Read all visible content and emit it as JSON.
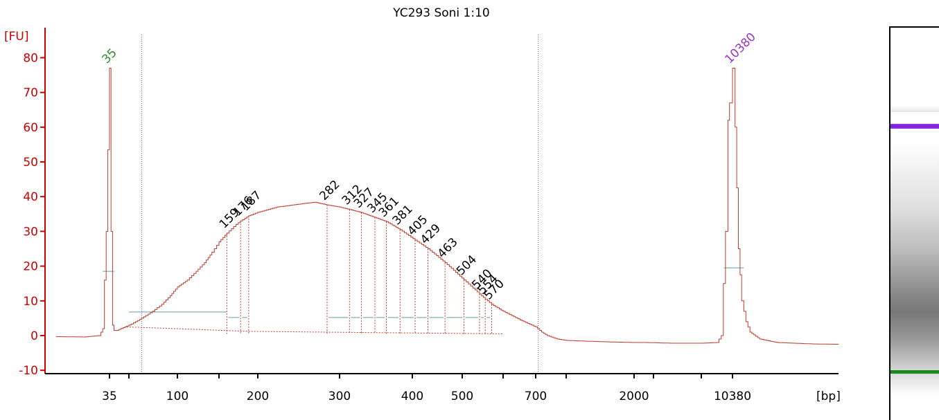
{
  "chart_data": {
    "type": "line",
    "title": "YC293 Soni 1:10",
    "ylabel": "[FU]",
    "xlabel": "[bp]",
    "ylim": [
      -10,
      85
    ],
    "yticks": [
      -10,
      0,
      10,
      20,
      30,
      40,
      50,
      60,
      70,
      80
    ],
    "xticks": [
      {
        "bp": 35,
        "label": "35"
      },
      {
        "bp": 50,
        "label": ""
      },
      {
        "bp": 100,
        "label": "100"
      },
      {
        "bp": 150,
        "label": ""
      },
      {
        "bp": 200,
        "label": "200"
      },
      {
        "bp": 300,
        "label": "300"
      },
      {
        "bp": 400,
        "label": "400"
      },
      {
        "bp": 500,
        "label": "500"
      },
      {
        "bp": 600,
        "label": ""
      },
      {
        "bp": 700,
        "label": "700"
      },
      {
        "bp": 1000,
        "label": ""
      },
      {
        "bp": 2000,
        "label": "2000"
      },
      {
        "bp": 4000,
        "label": ""
      },
      {
        "bp": 7000,
        "label": ""
      },
      {
        "bp": 10380,
        "label": "10380"
      }
    ],
    "region_markers_bp": [
      60,
      720
    ],
    "markers": [
      {
        "label": "35",
        "bp": 35,
        "fu": 77,
        "color": "#2e8b2e"
      },
      {
        "label": "10380",
        "bp": 10380,
        "fu": 77,
        "color": "#9933cc"
      }
    ],
    "series": [
      {
        "color": "#c0392b",
        "points": [
          [
            22,
            -0.3
          ],
          [
            28,
            -0.4
          ],
          [
            32,
            0
          ],
          [
            33,
            2
          ],
          [
            34,
            30
          ],
          [
            35,
            77
          ],
          [
            36,
            30
          ],
          [
            37,
            3
          ],
          [
            38,
            1.5
          ],
          [
            40,
            1.5
          ],
          [
            45,
            2.3
          ],
          [
            50,
            3
          ],
          [
            55,
            4
          ],
          [
            60,
            5
          ],
          [
            70,
            7
          ],
          [
            80,
            9
          ],
          [
            90,
            11.5
          ],
          [
            100,
            14
          ],
          [
            110,
            16
          ],
          [
            120,
            18.5
          ],
          [
            130,
            21
          ],
          [
            140,
            24
          ],
          [
            150,
            27
          ],
          [
            159,
            29.5
          ],
          [
            170,
            32
          ],
          [
            176,
            33
          ],
          [
            187,
            34.5
          ],
          [
            200,
            35.5
          ],
          [
            220,
            37
          ],
          [
            250,
            38
          ],
          [
            265,
            38.4
          ],
          [
            282,
            37.6
          ],
          [
            300,
            37
          ],
          [
            312,
            36.3
          ],
          [
            327,
            35.4
          ],
          [
            345,
            34
          ],
          [
            361,
            32.8
          ],
          [
            381,
            30.5
          ],
          [
            405,
            27.5
          ],
          [
            429,
            25
          ],
          [
            463,
            21
          ],
          [
            504,
            16
          ],
          [
            540,
            12
          ],
          [
            554,
            10.5
          ],
          [
            570,
            9
          ],
          [
            600,
            7
          ],
          [
            650,
            4.5
          ],
          [
            700,
            2.5
          ],
          [
            750,
            1
          ],
          [
            800,
            0
          ],
          [
            900,
            -1
          ],
          [
            1000,
            -1.4
          ],
          [
            1500,
            -1.8
          ],
          [
            2000,
            -2
          ],
          [
            3000,
            -2
          ],
          [
            5000,
            -2.2
          ],
          [
            7000,
            -2.2
          ],
          [
            8500,
            -2
          ],
          [
            9000,
            0
          ],
          [
            9500,
            30
          ],
          [
            9800,
            62
          ],
          [
            10000,
            67
          ],
          [
            10380,
            77
          ],
          [
            10600,
            60
          ],
          [
            10900,
            25
          ],
          [
            11200,
            10
          ],
          [
            11600,
            4
          ],
          [
            12000,
            1
          ],
          [
            13000,
            -1
          ],
          [
            15000,
            -2
          ],
          [
            20000,
            -2.4
          ],
          [
            25000,
            -2.5
          ]
        ]
      }
    ],
    "peaks": [
      {
        "label": "159",
        "bp": 159,
        "fu": 29.5
      },
      {
        "label": "176",
        "bp": 176,
        "fu": 33
      },
      {
        "label": "187",
        "bp": 187,
        "fu": 34.5
      },
      {
        "label": "282",
        "bp": 282,
        "fu": 37.6
      },
      {
        "label": "312",
        "bp": 312,
        "fu": 36.3
      },
      {
        "label": "327",
        "bp": 327,
        "fu": 35.4
      },
      {
        "label": "345",
        "bp": 345,
        "fu": 34
      },
      {
        "label": "361",
        "bp": 361,
        "fu": 32.8
      },
      {
        "label": "381",
        "bp": 381,
        "fu": 30.5
      },
      {
        "label": "405",
        "bp": 405,
        "fu": 27.5
      },
      {
        "label": "429",
        "bp": 429,
        "fu": 25
      },
      {
        "label": "463",
        "bp": 463,
        "fu": 21
      },
      {
        "label": "504",
        "bp": 504,
        "fu": 16
      },
      {
        "label": "540",
        "bp": 540,
        "fu": 12
      },
      {
        "label": "554",
        "bp": 554,
        "fu": 10.5
      },
      {
        "label": "570",
        "bp": 570,
        "fu": 9
      }
    ]
  },
  "colors": {
    "axis": "#cc0000",
    "trace": "#c0392b",
    "baseline": "#5f9ea0",
    "upper_band": "#9933ff",
    "lower_band": "#1a8a1a"
  }
}
